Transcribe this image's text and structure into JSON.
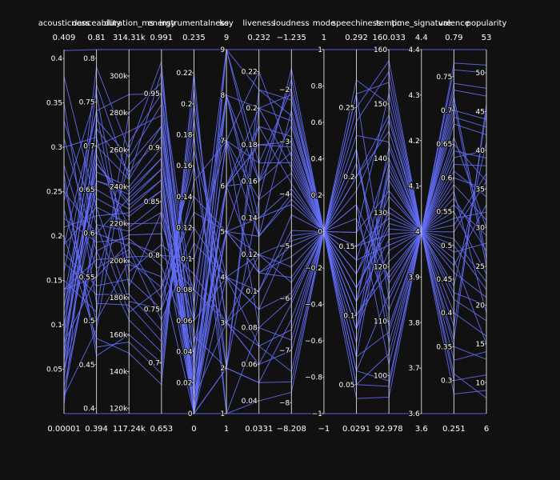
{
  "chart_data": {
    "type": "parallel_coordinates",
    "line_color": "#636efa",
    "background": "#111111",
    "axes": [
      {
        "name": "acousticness",
        "range_min": "0.00001",
        "range_max": "0.409",
        "min": 0,
        "max": 0.41,
        "ticks": [
          {
            "v": 0.05,
            "t": "0.05"
          },
          {
            "v": 0.1,
            "t": "0.1"
          },
          {
            "v": 0.15,
            "t": "0.15"
          },
          {
            "v": 0.2,
            "t": "0.2"
          },
          {
            "v": 0.25,
            "t": "0.25"
          },
          {
            "v": 0.3,
            "t": "0.3"
          },
          {
            "v": 0.35,
            "t": "0.35"
          },
          {
            "v": 0.4,
            "t": "0.4"
          }
        ]
      },
      {
        "name": "danceability",
        "range_min": "0.394",
        "range_max": "0.81",
        "min": 0.394,
        "max": 0.81,
        "ticks": [
          {
            "v": 0.4,
            "t": "0.4"
          },
          {
            "v": 0.45,
            "t": "0.45"
          },
          {
            "v": 0.5,
            "t": "0.5"
          },
          {
            "v": 0.55,
            "t": "0.55"
          },
          {
            "v": 0.6,
            "t": "0.6"
          },
          {
            "v": 0.65,
            "t": "0.65"
          },
          {
            "v": 0.7,
            "t": "0.7"
          },
          {
            "v": 0.75,
            "t": "0.75"
          },
          {
            "v": 0.8,
            "t": "0.8"
          }
        ]
      },
      {
        "name": "duration_ms",
        "range_min": "117.24k",
        "range_max": "314.31k",
        "min": 117.24,
        "max": 314.31,
        "ticks": [
          {
            "v": 120,
            "t": "120k"
          },
          {
            "v": 140,
            "t": "140k"
          },
          {
            "v": 160,
            "t": "160k"
          },
          {
            "v": 180,
            "t": "180k"
          },
          {
            "v": 200,
            "t": "200k"
          },
          {
            "v": 220,
            "t": "220k"
          },
          {
            "v": 240,
            "t": "240k"
          },
          {
            "v": 260,
            "t": "260k"
          },
          {
            "v": 280,
            "t": "280k"
          },
          {
            "v": 300,
            "t": "300k"
          }
        ]
      },
      {
        "name": "energy",
        "range_min": "0.653",
        "range_max": "0.991",
        "min": 0.653,
        "max": 0.991,
        "ticks": [
          {
            "v": 0.7,
            "t": "0.7"
          },
          {
            "v": 0.75,
            "t": "0.75"
          },
          {
            "v": 0.8,
            "t": "0.8"
          },
          {
            "v": 0.85,
            "t": "0.85"
          },
          {
            "v": 0.9,
            "t": "0.9"
          },
          {
            "v": 0.95,
            "t": "0.95"
          }
        ]
      },
      {
        "name": "instrumentalness",
        "range_min": "0",
        "range_max": "0.235",
        "min": 0,
        "max": 0.235,
        "ticks": [
          {
            "v": 0,
            "t": "0"
          },
          {
            "v": 0.02,
            "t": "0.02"
          },
          {
            "v": 0.04,
            "t": "0.04"
          },
          {
            "v": 0.06,
            "t": "0.06"
          },
          {
            "v": 0.08,
            "t": "0.08"
          },
          {
            "v": 0.1,
            "t": "0.1"
          },
          {
            "v": 0.12,
            "t": "0.12"
          },
          {
            "v": 0.14,
            "t": "0.14"
          },
          {
            "v": 0.16,
            "t": "0.16"
          },
          {
            "v": 0.18,
            "t": "0.18"
          },
          {
            "v": 0.2,
            "t": "0.2"
          },
          {
            "v": 0.22,
            "t": "0.22"
          }
        ]
      },
      {
        "name": "key",
        "range_min": "1",
        "range_max": "9",
        "min": 1,
        "max": 9,
        "ticks": [
          {
            "v": 1,
            "t": "1"
          },
          {
            "v": 2,
            "t": "2"
          },
          {
            "v": 3,
            "t": "3"
          },
          {
            "v": 4,
            "t": "4"
          },
          {
            "v": 5,
            "t": "5"
          },
          {
            "v": 6,
            "t": "6"
          },
          {
            "v": 7,
            "t": "7"
          },
          {
            "v": 8,
            "t": "8"
          },
          {
            "v": 9,
            "t": "9"
          }
        ]
      },
      {
        "name": "liveness",
        "range_min": "0.0331",
        "range_max": "0.232",
        "min": 0.0331,
        "max": 0.232,
        "ticks": [
          {
            "v": 0.04,
            "t": "0.04"
          },
          {
            "v": 0.06,
            "t": "0.06"
          },
          {
            "v": 0.08,
            "t": "0.08"
          },
          {
            "v": 0.1,
            "t": "0.1"
          },
          {
            "v": 0.12,
            "t": "0.12"
          },
          {
            "v": 0.14,
            "t": "0.14"
          },
          {
            "v": 0.16,
            "t": "0.16"
          },
          {
            "v": 0.18,
            "t": "0.18"
          },
          {
            "v": 0.2,
            "t": "0.2"
          },
          {
            "v": 0.22,
            "t": "0.22"
          }
        ]
      },
      {
        "name": "loudness",
        "range_min": "−8.208",
        "range_max": "−1.235",
        "min": -8.208,
        "max": -1.235,
        "ticks": [
          {
            "v": -8,
            "t": "−8"
          },
          {
            "v": -7,
            "t": "−7"
          },
          {
            "v": -6,
            "t": "−6"
          },
          {
            "v": -5,
            "t": "−5"
          },
          {
            "v": -4,
            "t": "−4"
          },
          {
            "v": -3,
            "t": "−3"
          },
          {
            "v": -2,
            "t": "−2"
          }
        ]
      },
      {
        "name": "mode",
        "range_min": "−1",
        "range_max": "1",
        "min": -1,
        "max": 1,
        "ticks": [
          {
            "v": -1,
            "t": "−1"
          },
          {
            "v": -0.8,
            "t": "−0.8"
          },
          {
            "v": -0.6,
            "t": "−0.6"
          },
          {
            "v": -0.4,
            "t": "−0.4"
          },
          {
            "v": -0.2,
            "t": "−0.2"
          },
          {
            "v": 0,
            "t": "0"
          },
          {
            "v": 0.2,
            "t": "0.2"
          },
          {
            "v": 0.4,
            "t": "0.4"
          },
          {
            "v": 0.6,
            "t": "0.6"
          },
          {
            "v": 0.8,
            "t": "0.8"
          },
          {
            "v": 1,
            "t": "1"
          }
        ]
      },
      {
        "name": "speechiness",
        "range_min": "0.0291",
        "range_max": "0.292",
        "min": 0.0291,
        "max": 0.292,
        "ticks": [
          {
            "v": 0.05,
            "t": "0.05"
          },
          {
            "v": 0.1,
            "t": "0.1"
          },
          {
            "v": 0.15,
            "t": "0.15"
          },
          {
            "v": 0.2,
            "t": "0.2"
          },
          {
            "v": 0.25,
            "t": "0.25"
          }
        ]
      },
      {
        "name": "tempo",
        "range_min": "92.978",
        "range_max": "160.033",
        "min": 92.978,
        "max": 160.033,
        "ticks": [
          {
            "v": 100,
            "t": "100"
          },
          {
            "v": 110,
            "t": "110"
          },
          {
            "v": 120,
            "t": "120"
          },
          {
            "v": 130,
            "t": "130"
          },
          {
            "v": 140,
            "t": "140"
          },
          {
            "v": 150,
            "t": "150"
          },
          {
            "v": 160,
            "t": "160"
          }
        ]
      },
      {
        "name": "time_signature",
        "range_min": "3.6",
        "range_max": "4.4",
        "min": 3.6,
        "max": 4.4,
        "ticks": [
          {
            "v": 3.6,
            "t": "3.6"
          },
          {
            "v": 3.7,
            "t": "3.7"
          },
          {
            "v": 3.8,
            "t": "3.8"
          },
          {
            "v": 3.9,
            "t": "3.9"
          },
          {
            "v": 4,
            "t": "4"
          },
          {
            "v": 4.1,
            "t": "4.1"
          },
          {
            "v": 4.2,
            "t": "4.2"
          },
          {
            "v": 4.3,
            "t": "4.3"
          },
          {
            "v": 4.4,
            "t": "4.4"
          }
        ]
      },
      {
        "name": "valence",
        "range_min": "0.251",
        "range_max": "0.79",
        "min": 0.251,
        "max": 0.79,
        "ticks": [
          {
            "v": 0.3,
            "t": "0.3"
          },
          {
            "v": 0.35,
            "t": "0.35"
          },
          {
            "v": 0.4,
            "t": "0.4"
          },
          {
            "v": 0.45,
            "t": "0.45"
          },
          {
            "v": 0.5,
            "t": "0.5"
          },
          {
            "v": 0.55,
            "t": "0.55"
          },
          {
            "v": 0.6,
            "t": "0.6"
          },
          {
            "v": 0.65,
            "t": "0.65"
          },
          {
            "v": 0.7,
            "t": "0.7"
          },
          {
            "v": 0.75,
            "t": "0.75"
          }
        ]
      },
      {
        "name": "popularity",
        "range_min": "6",
        "range_max": "53",
        "min": 6,
        "max": 53,
        "ticks": [
          {
            "v": 10,
            "t": "10"
          },
          {
            "v": 15,
            "t": "15"
          },
          {
            "v": 20,
            "t": "20"
          },
          {
            "v": 25,
            "t": "25"
          },
          {
            "v": 30,
            "t": "30"
          },
          {
            "v": 35,
            "t": "35"
          },
          {
            "v": 40,
            "t": "40"
          },
          {
            "v": 45,
            "t": "45"
          },
          {
            "v": 50,
            "t": "50"
          }
        ]
      }
    ],
    "records": [
      [
        0.409,
        0.81,
        314.31,
        0.991,
        0.235,
        9,
        0.232,
        -1.235,
        1,
        0.292,
        160.033,
        4.4,
        0.79,
        53
      ],
      [
        1e-05,
        0.394,
        117.24,
        0.653,
        0,
        1,
        0.0331,
        -8.208,
        -1,
        0.0291,
        92.978,
        3.6,
        0.251,
        6
      ],
      [
        0.21,
        0.62,
        226,
        0.86,
        0.012,
        5,
        0.13,
        -4.1,
        0,
        0.14,
        124,
        4,
        0.54,
        32
      ],
      [
        0.05,
        0.58,
        214,
        0.82,
        0.003,
        6,
        0.11,
        -5.2,
        0,
        0.09,
        131,
        4,
        0.49,
        28
      ],
      [
        0.12,
        0.66,
        238,
        0.89,
        0.02,
        7,
        0.17,
        -3.4,
        0,
        0.18,
        118,
        4,
        0.62,
        38
      ],
      [
        0.3,
        0.71,
        198,
        0.78,
        0.0,
        4,
        0.09,
        -4.8,
        0,
        0.11,
        142,
        4,
        0.71,
        25
      ],
      [
        0.08,
        0.55,
        252,
        0.92,
        0.05,
        2,
        0.2,
        -2.6,
        0,
        0.22,
        109,
        4,
        0.44,
        41
      ],
      [
        0.16,
        0.74,
        186,
        0.84,
        0.08,
        8,
        0.14,
        -3.9,
        0,
        0.07,
        136,
        4,
        0.58,
        19
      ],
      [
        0.02,
        0.49,
        264,
        0.95,
        0.01,
        3,
        0.06,
        -6.1,
        0,
        0.16,
        152,
        4,
        0.38,
        45
      ],
      [
        0.25,
        0.6,
        208,
        0.76,
        0.14,
        5,
        0.12,
        -5.7,
        0,
        0.26,
        114,
        4,
        0.66,
        30
      ],
      [
        0.1,
        0.68,
        232,
        0.88,
        0.0,
        6,
        0.19,
        -2.9,
        0,
        0.12,
        127,
        4,
        0.52,
        36
      ],
      [
        0.35,
        0.52,
        176,
        0.72,
        0.18,
        1,
        0.08,
        -6.8,
        0,
        0.06,
        99,
        4,
        0.33,
        14
      ],
      [
        0.06,
        0.77,
        245,
        0.97,
        0.03,
        9,
        0.16,
        -1.8,
        0,
        0.2,
        145,
        4,
        0.74,
        48
      ],
      [
        0.19,
        0.63,
        220,
        0.83,
        0.06,
        4,
        0.1,
        -4.4,
        0,
        0.1,
        121,
        4,
        0.57,
        27
      ],
      [
        0.14,
        0.57,
        202,
        0.8,
        0.1,
        7,
        0.15,
        -3.6,
        0,
        0.13,
        133,
        4,
        0.47,
        33
      ],
      [
        0.04,
        0.7,
        270,
        0.93,
        0.0,
        2,
        0.21,
        -2.2,
        0,
        0.24,
        156,
        4,
        0.69,
        43
      ],
      [
        0.27,
        0.46,
        160,
        0.7,
        0.2,
        3,
        0.07,
        -7.4,
        0,
        0.05,
        104,
        4,
        0.3,
        11
      ],
      [
        0.09,
        0.65,
        228,
        0.87,
        0.015,
        6,
        0.18,
        -3.1,
        0,
        0.15,
        129,
        4,
        0.6,
        35
      ],
      [
        0.22,
        0.59,
        212,
        0.79,
        0.04,
        5,
        0.11,
        -5.0,
        0,
        0.08,
        138,
        4,
        0.5,
        22
      ],
      [
        0.01,
        0.73,
        256,
        0.94,
        0.0,
        8,
        0.13,
        -2.4,
        0,
        0.19,
        147,
        4,
        0.76,
        50
      ],
      [
        0.18,
        0.54,
        190,
        0.75,
        0.12,
        4,
        0.09,
        -5.9,
        0,
        0.17,
        112,
        4,
        0.42,
        18
      ],
      [
        0.11,
        0.67,
        240,
        0.9,
        0.025,
        7,
        0.22,
        -3.3,
        0,
        0.11,
        125,
        4,
        0.64,
        39
      ],
      [
        0.33,
        0.61,
        172,
        0.77,
        0.16,
        2,
        0.05,
        -6.4,
        0,
        0.21,
        117,
        4,
        0.55,
        24
      ],
      [
        0.07,
        0.69,
        218,
        0.85,
        0.0,
        5,
        0.14,
        -4.2,
        0,
        0.14,
        140,
        4,
        0.59,
        31
      ],
      [
        0.15,
        0.51,
        280,
        0.96,
        0.07,
        9,
        0.17,
        -2.0,
        0,
        0.27,
        150,
        4,
        0.36,
        46
      ],
      [
        0.24,
        0.76,
        194,
        0.81,
        0.09,
        3,
        0.1,
        -4.7,
        0,
        0.09,
        123,
        4,
        0.72,
        26
      ],
      [
        0.03,
        0.6,
        234,
        0.88,
        0.0,
        6,
        0.2,
        -3.5,
        0,
        0.12,
        128,
        4,
        0.53,
        37
      ],
      [
        0.2,
        0.48,
        150,
        0.68,
        0.22,
        1,
        0.04,
        -7.8,
        0,
        0.04,
        96,
        4,
        0.28,
        9
      ],
      [
        0.13,
        0.72,
        248,
        0.91,
        0.035,
        8,
        0.16,
        -2.7,
        0,
        0.23,
        143,
        4,
        0.68,
        42
      ],
      [
        0.28,
        0.56,
        206,
        0.74,
        0.11,
        4,
        0.12,
        -5.4,
        0,
        0.1,
        119,
        4,
        0.46,
        21
      ],
      [
        0.06,
        0.64,
        224,
        0.86,
        0.005,
        5,
        0.19,
        -3.8,
        0,
        0.16,
        134,
        4,
        0.61,
        34
      ],
      [
        0.17,
        0.53,
        182,
        0.73,
        0.15,
        7,
        0.08,
        -6.0,
        0,
        0.07,
        108,
        4,
        0.4,
        16
      ],
      [
        0.09,
        0.79,
        260,
        0.98,
        0.0,
        2,
        0.15,
        -1.6,
        0,
        0.25,
        158,
        4,
        0.77,
        51
      ],
      [
        0.31,
        0.58,
        168,
        0.71,
        0.19,
        3,
        0.06,
        -7.0,
        0,
        0.18,
        102,
        4,
        0.35,
        13
      ],
      [
        0.05,
        0.66,
        236,
        0.89,
        0.045,
        6,
        0.18,
        -3.0,
        0,
        0.13,
        130,
        4,
        0.63,
        40
      ],
      [
        0.23,
        0.5,
        200,
        0.77,
        0.13,
        5,
        0.11,
        -5.6,
        0,
        0.06,
        115,
        4,
        0.43,
        20
      ],
      [
        0.12,
        0.7,
        244,
        0.92,
        0.0,
        9,
        0.21,
        -2.5,
        0,
        0.2,
        148,
        4,
        0.7,
        44
      ],
      [
        0.38,
        0.63,
        178,
        0.75,
        0.17,
        4,
        0.07,
        -6.6,
        0,
        0.22,
        106,
        4,
        0.48,
        15
      ],
      [
        0.02,
        0.61,
        216,
        0.84,
        0.02,
        7,
        0.13,
        -4.0,
        0,
        0.11,
        137,
        4,
        0.56,
        29
      ],
      [
        0.19,
        0.74,
        290,
        0.95,
        0.06,
        8,
        0.2,
        -2.1,
        0,
        0.26,
        154,
        4,
        0.73,
        47
      ],
      [
        0.26,
        0.47,
        156,
        0.69,
        0.21,
        2,
        0.05,
        -7.6,
        0,
        0.05,
        98,
        4,
        0.31,
        8
      ],
      [
        0.08,
        0.68,
        230,
        0.87,
        0.01,
        6,
        0.16,
        -3.2,
        0,
        0.15,
        126,
        4,
        0.65,
        36
      ],
      [
        0.14,
        0.55,
        210,
        0.8,
        0.08,
        3,
        0.12,
        -4.9,
        0,
        0.09,
        139,
        4,
        0.51,
        23
      ]
    ]
  }
}
